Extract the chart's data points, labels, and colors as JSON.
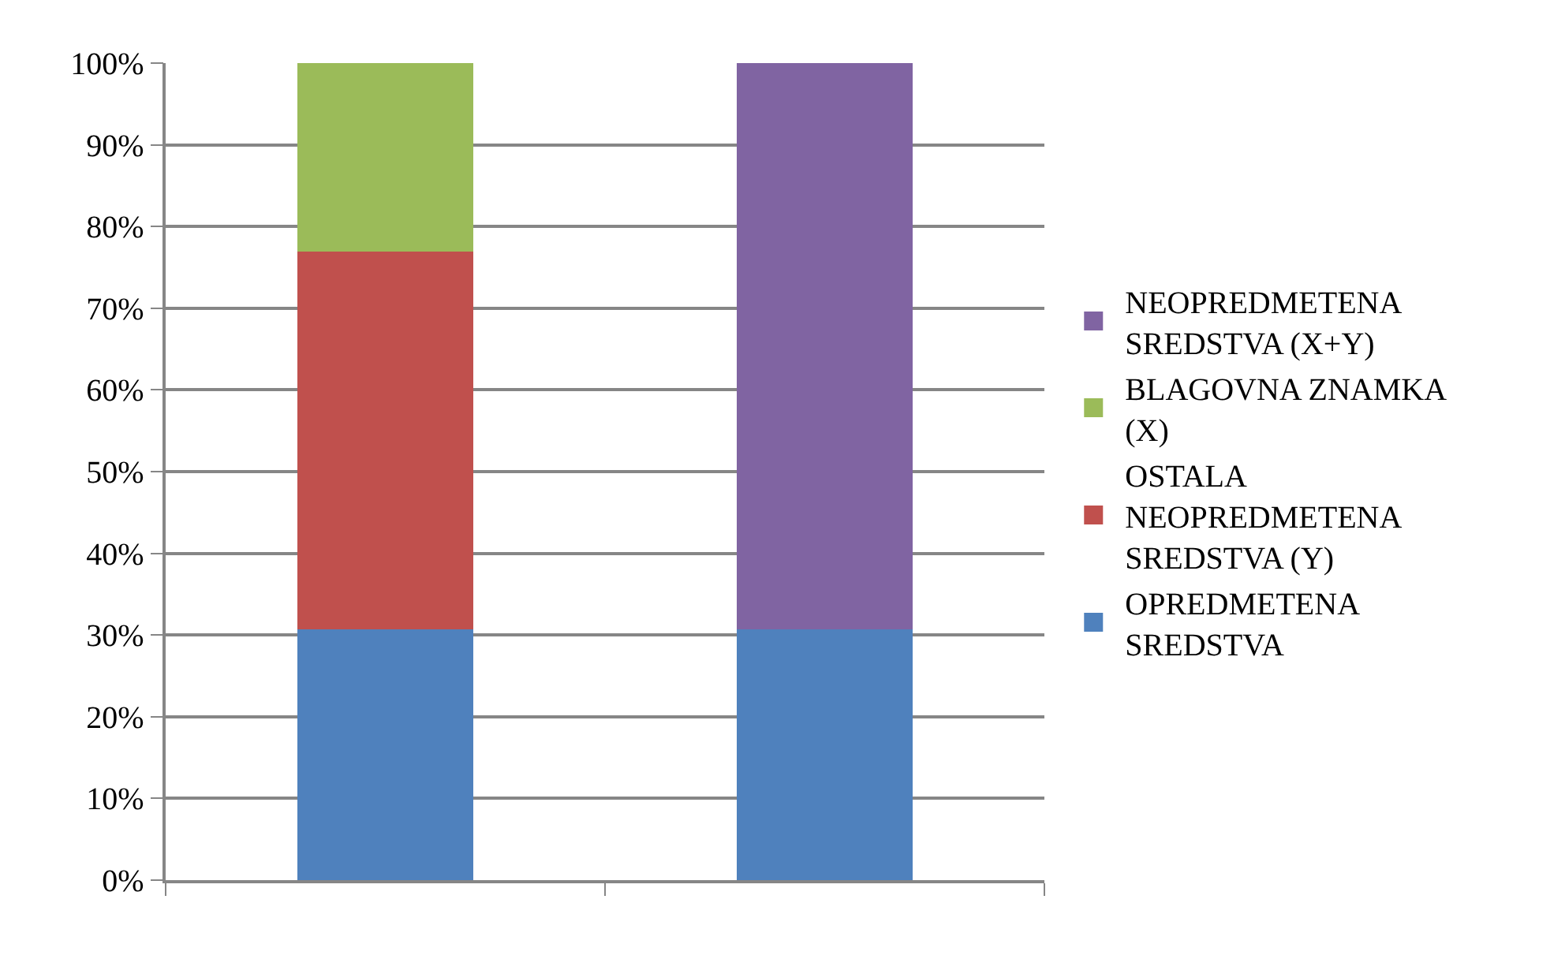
{
  "chart_data": {
    "type": "bar",
    "stacked": true,
    "categories": [
      null,
      null
    ],
    "series": [
      {
        "name": "OPREDMETENA SREDSTVA",
        "color": "#4f81bd",
        "values": [
          30.7,
          30.7
        ]
      },
      {
        "name": "OSTALA NEOPREDMETENA SREDSTVA (Y)",
        "color": "#c0504d",
        "values": [
          46.2,
          null
        ]
      },
      {
        "name": "BLAGOVNA ZNAMKA (X)",
        "color": "#9bbb59",
        "values": [
          23.1,
          null
        ]
      },
      {
        "name": "NEOPREDMETENA SREDSTVA (X+Y)",
        "color": "#8064a2",
        "values": [
          null,
          69.3
        ]
      }
    ],
    "ylim": [
      0,
      100
    ],
    "yticks": [
      {
        "value": 0,
        "label": "0%"
      },
      {
        "value": 10,
        "label": "10%"
      },
      {
        "value": 20,
        "label": "20%"
      },
      {
        "value": 30,
        "label": "30%"
      },
      {
        "value": 40,
        "label": "40%"
      },
      {
        "value": 50,
        "label": "50%"
      },
      {
        "value": 60,
        "label": "60%"
      },
      {
        "value": 70,
        "label": "70%"
      },
      {
        "value": 80,
        "label": "80%"
      },
      {
        "value": 90,
        "label": "90%"
      },
      {
        "value": 100,
        "label": "100%"
      }
    ],
    "grid": "y",
    "legend": "right"
  }
}
